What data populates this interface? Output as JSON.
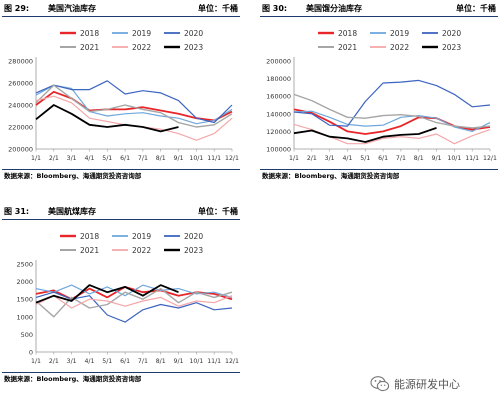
{
  "chart_data": [
    {
      "type": "line",
      "figure_no": "图 29:",
      "title": "美国汽油库存",
      "unit": "单位：千桶",
      "source": "数据来源：Bloomberg、海通期货投资咨询部",
      "x": [
        "1/1",
        "2/1",
        "3/1",
        "4/1",
        "5/1",
        "6/1",
        "7/1",
        "8/1",
        "9/1",
        "10/1",
        "11/1",
        "12/1"
      ],
      "ylim": [
        200000,
        280000
      ],
      "yticks": [
        200000,
        220000,
        240000,
        260000,
        280000
      ],
      "legend_position": "top",
      "series": [
        {
          "name": "2018",
          "color": "#e8262a",
          "width": 1.8,
          "values": [
            240000,
            252000,
            246000,
            235000,
            236000,
            236000,
            238000,
            235000,
            232000,
            228000,
            226000,
            234000
          ]
        },
        {
          "name": "2019",
          "color": "#6fa8dc",
          "width": 1.2,
          "values": [
            249000,
            258000,
            255000,
            234000,
            230000,
            232000,
            233000,
            230000,
            228000,
            223000,
            226000,
            236000
          ]
        },
        {
          "name": "2020",
          "color": "#3c64c0",
          "width": 1.2,
          "values": [
            251000,
            258000,
            254000,
            254000,
            262000,
            250000,
            253000,
            251000,
            244000,
            228000,
            224000,
            240000
          ]
        },
        {
          "name": "2021",
          "color": "#a6a6a6",
          "width": 1.4,
          "values": [
            242000,
            258000,
            246000,
            234000,
            236000,
            240000,
            236000,
            233000,
            224000,
            220000,
            222000,
            232000
          ]
        },
        {
          "name": "2022",
          "color": "#f4a7a9",
          "width": 1.2,
          "values": [
            244000,
            248000,
            242000,
            228000,
            225000,
            222000,
            220000,
            218000,
            214000,
            208000,
            214000,
            228000
          ]
        },
        {
          "name": "2023",
          "color": "#000000",
          "width": 1.8,
          "values": [
            227000,
            240000,
            232000,
            222000,
            220000,
            222000,
            220000,
            216000,
            220000,
            null,
            null,
            null
          ]
        }
      ]
    },
    {
      "type": "line",
      "figure_no": "图 30:",
      "title": "美国馏分油库存",
      "unit": "单位：千桶",
      "source": "数据来源：Bloomberg、海通期货投资咨询部",
      "x": [
        "1/1",
        "2/1",
        "3/1",
        "4/1",
        "5/1",
        "6/1",
        "7/1",
        "8/1",
        "9/1",
        "10/1",
        "11/1",
        "12/1"
      ],
      "ylim": [
        100000,
        200000
      ],
      "yticks": [
        100000,
        120000,
        140000,
        160000,
        180000,
        200000
      ],
      "legend_position": "top",
      "series": [
        {
          "name": "2018",
          "color": "#e8262a",
          "width": 1.8,
          "values": [
            145000,
            141000,
            131000,
            120000,
            117000,
            120000,
            126000,
            136000,
            135000,
            126000,
            122000,
            125000
          ]
        },
        {
          "name": "2019",
          "color": "#6fa8dc",
          "width": 1.2,
          "values": [
            142000,
            143000,
            136000,
            128000,
            126000,
            127000,
            136000,
            138000,
            135000,
            125000,
            120000,
            130000
          ]
        },
        {
          "name": "2020",
          "color": "#3c64c0",
          "width": 1.2,
          "values": [
            142000,
            140000,
            127000,
            126000,
            154000,
            175000,
            176000,
            178000,
            172000,
            162000,
            148000,
            150000
          ]
        },
        {
          "name": "2021",
          "color": "#a6a6a6",
          "width": 1.4,
          "values": [
            162000,
            155000,
            145000,
            136000,
            135000,
            138000,
            139000,
            137000,
            130000,
            126000,
            124000,
            126000
          ]
        },
        {
          "name": "2022",
          "color": "#f4a7a9",
          "width": 1.2,
          "values": [
            128000,
            122000,
            114000,
            106000,
            106000,
            112000,
            114000,
            112000,
            117000,
            106000,
            115000,
            122000
          ]
        },
        {
          "name": "2023",
          "color": "#000000",
          "width": 1.8,
          "values": [
            118000,
            121000,
            114000,
            112000,
            108000,
            114000,
            116000,
            117000,
            124000,
            null,
            null,
            null
          ]
        }
      ]
    },
    {
      "type": "line",
      "figure_no": "图 31:",
      "title": "美国航煤库存",
      "unit": "单位：千桶",
      "source": "数据来源：Bloomberg、海通期货投资咨询部",
      "x": [
        "1/1",
        "2/1",
        "3/1",
        "4/1",
        "5/1",
        "6/1",
        "7/1",
        "8/1",
        "9/1",
        "10/1",
        "11/1",
        "12/1"
      ],
      "ylim": [
        0,
        2500
      ],
      "yticks": [
        0,
        500,
        1000,
        1500,
        2000,
        2500
      ],
      "legend_position": "top",
      "series": [
        {
          "name": "2018",
          "color": "#e8262a",
          "width": 1.8,
          "values": [
            1650,
            1750,
            1500,
            1800,
            1550,
            1850,
            1700,
            1750,
            1600,
            1700,
            1650,
            1500
          ]
        },
        {
          "name": "2019",
          "color": "#6fa8dc",
          "width": 1.2,
          "values": [
            1800,
            1700,
            1900,
            1650,
            1850,
            1600,
            1900,
            1750,
            1800,
            1650,
            1700,
            1550
          ]
        },
        {
          "name": "2020",
          "color": "#3c64c0",
          "width": 1.2,
          "values": [
            1550,
            1700,
            1500,
            1600,
            1050,
            850,
            1200,
            1350,
            1250,
            1400,
            1200,
            1250
          ]
        },
        {
          "name": "2021",
          "color": "#a6a6a6",
          "width": 1.4,
          "values": [
            1450,
            1000,
            1550,
            1250,
            1350,
            1700,
            1500,
            1800,
            1400,
            1700,
            1550,
            1700
          ]
        },
        {
          "name": "2022",
          "color": "#f4a7a9",
          "width": 1.2,
          "values": [
            1350,
            1600,
            1250,
            1500,
            1450,
            1300,
            1450,
            1550,
            1300,
            1450,
            1400,
            1600
          ]
        },
        {
          "name": "2023",
          "color": "#000000",
          "width": 1.8,
          "values": [
            1400,
            1600,
            1450,
            1900,
            1700,
            1850,
            1600,
            1900,
            1700,
            null,
            null,
            null
          ]
        }
      ]
    }
  ],
  "watermark": {
    "text": "能源研发中心",
    "icon": "wechat-icon"
  }
}
